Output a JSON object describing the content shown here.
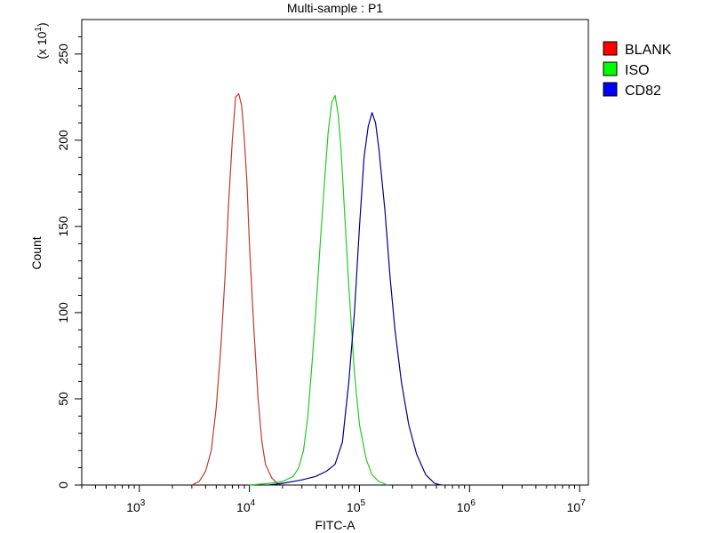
{
  "chart_data": {
    "type": "line",
    "title": "Multi-sample : P1",
    "xlabel": "FITC-A",
    "ylabel": "Count",
    "y_multiplier_label": "(x 10",
    "y_multiplier_exp": "1",
    "x_scale": "log",
    "xlim": [
      300,
      12000000
    ],
    "ylim": [
      0,
      270
    ],
    "x_ticks": [
      {
        "value": 1000,
        "base": "10",
        "exp": "3"
      },
      {
        "value": 10000,
        "base": "10",
        "exp": "4"
      },
      {
        "value": 100000,
        "base": "10",
        "exp": "5"
      },
      {
        "value": 1000000,
        "base": "10",
        "exp": "6"
      },
      {
        "value": 10000000,
        "base": "10",
        "exp": "7"
      }
    ],
    "y_ticks": [
      0,
      50,
      100,
      150,
      200,
      250
    ],
    "legend_position": "top-right",
    "series": [
      {
        "name": "BLANK",
        "color": "#c0392b",
        "legend_color": "#ff0000",
        "points": [
          [
            3000,
            0
          ],
          [
            3500,
            2
          ],
          [
            4000,
            8
          ],
          [
            4500,
            20
          ],
          [
            5000,
            45
          ],
          [
            5500,
            80
          ],
          [
            6000,
            120
          ],
          [
            6500,
            165
          ],
          [
            7000,
            200
          ],
          [
            7500,
            225
          ],
          [
            8000,
            227
          ],
          [
            8500,
            220
          ],
          [
            9000,
            200
          ],
          [
            9500,
            175
          ],
          [
            10000,
            140
          ],
          [
            11000,
            90
          ],
          [
            12000,
            50
          ],
          [
            13000,
            25
          ],
          [
            14000,
            12
          ],
          [
            16000,
            4
          ],
          [
            18000,
            1
          ],
          [
            20000,
            0
          ]
        ]
      },
      {
        "name": "ISO",
        "color": "#22cc22",
        "legend_color": "#00ff00",
        "points": [
          [
            10000,
            0
          ],
          [
            15000,
            1
          ],
          [
            20000,
            2
          ],
          [
            25000,
            5
          ],
          [
            28000,
            10
          ],
          [
            31000,
            20
          ],
          [
            34000,
            40
          ],
          [
            37000,
            70
          ],
          [
            40000,
            100
          ],
          [
            44000,
            140
          ],
          [
            48000,
            175
          ],
          [
            52000,
            205
          ],
          [
            56000,
            222
          ],
          [
            60000,
            226
          ],
          [
            64000,
            215
          ],
          [
            68000,
            195
          ],
          [
            73000,
            160
          ],
          [
            80000,
            115
          ],
          [
            90000,
            65
          ],
          [
            100000,
            35
          ],
          [
            115000,
            15
          ],
          [
            130000,
            6
          ],
          [
            150000,
            2
          ],
          [
            180000,
            0
          ]
        ]
      },
      {
        "name": "CD82",
        "color": "#000088",
        "legend_color": "#0000ff",
        "points": [
          [
            15000,
            0
          ],
          [
            20000,
            1
          ],
          [
            30000,
            3
          ],
          [
            40000,
            5
          ],
          [
            50000,
            8
          ],
          [
            60000,
            12
          ],
          [
            70000,
            25
          ],
          [
            80000,
            60
          ],
          [
            90000,
            100
          ],
          [
            100000,
            150
          ],
          [
            110000,
            190
          ],
          [
            120000,
            208
          ],
          [
            130000,
            216
          ],
          [
            140000,
            210
          ],
          [
            150000,
            195
          ],
          [
            170000,
            160
          ],
          [
            190000,
            120
          ],
          [
            210000,
            90
          ],
          [
            240000,
            60
          ],
          [
            280000,
            35
          ],
          [
            330000,
            18
          ],
          [
            400000,
            6
          ],
          [
            480000,
            1
          ],
          [
            550000,
            0
          ]
        ]
      }
    ]
  }
}
